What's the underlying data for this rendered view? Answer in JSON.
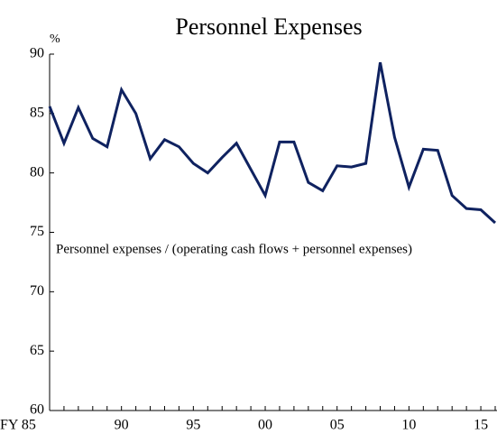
{
  "chart_data": {
    "type": "line",
    "title": "Personnel Expenses",
    "y_unit": "%",
    "annotation": "Personnel expenses / (operating cash flows + personnel expenses)",
    "categories": [
      "FY 85",
      null,
      null,
      null,
      null,
      "90",
      null,
      null,
      null,
      null,
      "95",
      null,
      null,
      null,
      null,
      "00",
      null,
      null,
      null,
      null,
      "05",
      null,
      null,
      null,
      null,
      "10",
      null,
      null,
      null,
      null,
      "15",
      null
    ],
    "series": [
      {
        "name": "Personnel expenses / (operating cash flows + personnel expenses)",
        "color": "#0f2260",
        "values": [
          85.6,
          82.5,
          85.5,
          82.9,
          82.2,
          87.0,
          85.0,
          81.2,
          82.8,
          82.2,
          80.8,
          80.0,
          81.3,
          82.5,
          80.3,
          78.1,
          82.6,
          82.6,
          79.2,
          78.5,
          80.6,
          80.5,
          80.8,
          89.3,
          83.0,
          78.8,
          82.0,
          81.9,
          78.1,
          77.0,
          76.9,
          75.8
        ]
      }
    ],
    "ylim": [
      60,
      90
    ],
    "yticks": [
      60,
      65,
      70,
      75,
      80,
      85,
      90
    ],
    "grid": false
  }
}
